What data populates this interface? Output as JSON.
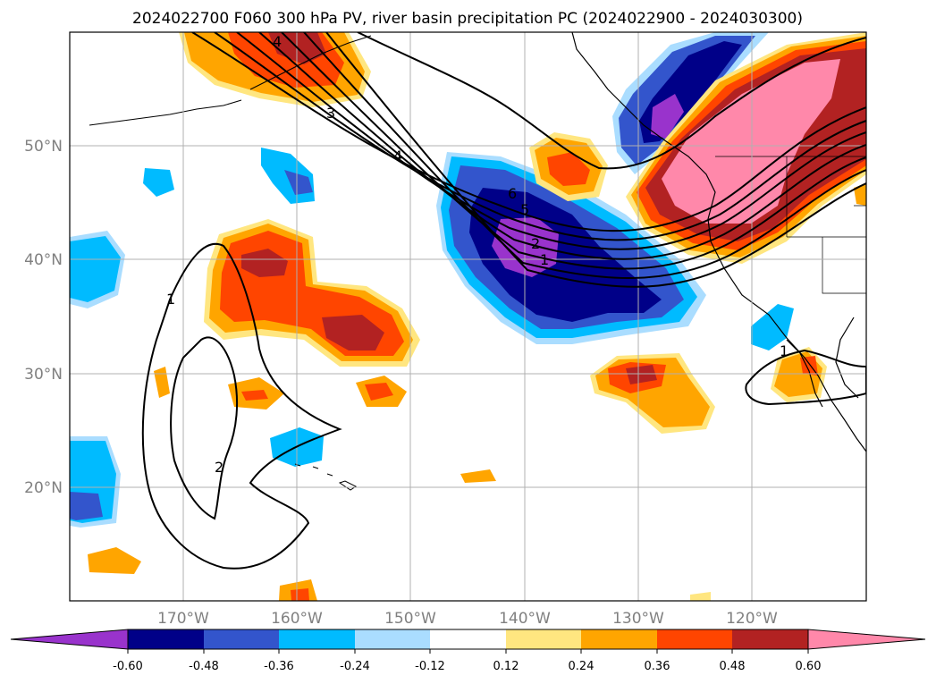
{
  "title": "2024022700 F060 300 hPa PV, river basin precipitation PC (2024022900 - 2024030300)",
  "map": {
    "lon_range": [
      -180,
      -110
    ],
    "lat_range": [
      10,
      60
    ],
    "grid": true,
    "lon_ticks": [
      "170°W",
      "160°W",
      "150°W",
      "140°W",
      "130°W",
      "120°W"
    ],
    "lat_ticks": [
      "50°N",
      "40°N",
      "30°N",
      "20°N"
    ],
    "contour_labels": [
      "4",
      "3",
      "4",
      "6",
      "5",
      "2",
      "1",
      "1",
      "2",
      "1"
    ]
  },
  "colorbar": {
    "ticks": [
      "-0.60",
      "-0.48",
      "-0.36",
      "-0.24",
      "-0.12",
      "0.12",
      "0.24",
      "0.36",
      "0.48",
      "0.60"
    ],
    "colors": [
      "#9933cc",
      "#000088",
      "#3355cc",
      "#00bbff",
      "#aaddff",
      "#ffffff",
      "#ffe680",
      "#ffa500",
      "#ff4500",
      "#b22222",
      "#ff88aa"
    ],
    "extend": "both"
  }
}
